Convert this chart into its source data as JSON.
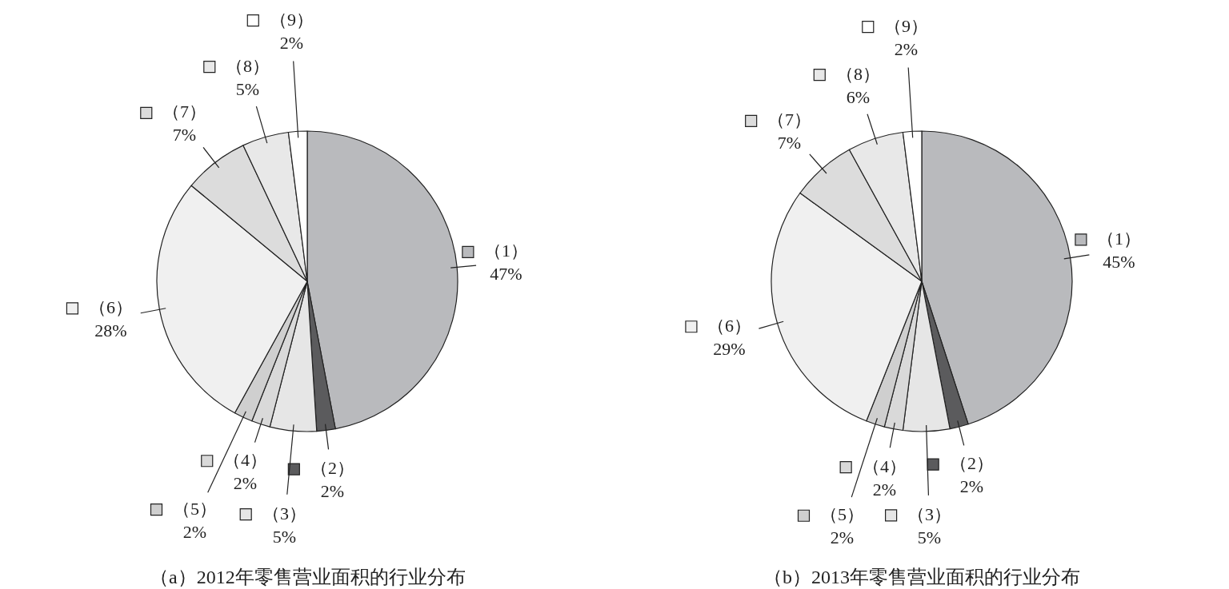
{
  "chart_data": [
    {
      "type": "pie",
      "title": "（a）2012年零售营业面积的行业分布",
      "categories": [
        "（1）",
        "（2）",
        "（3）",
        "（4）",
        "（5）",
        "（6）",
        "（7）",
        "（8）",
        "（9）"
      ],
      "values": [
        47,
        2,
        5,
        2,
        2,
        28,
        7,
        5,
        2
      ],
      "value_labels": [
        "47%",
        "2%",
        "5%",
        "2%",
        "2%",
        "28%",
        "7%",
        "5%",
        "2%"
      ],
      "colors": [
        "#b9babd",
        "#5b5b5d",
        "#e6e6e6",
        "#d9d9d9",
        "#cfcfcf",
        "#f0f0f0",
        "#dcdcdc",
        "#e8e8e8",
        "#ffffff"
      ],
      "legend": "left"
    },
    {
      "type": "pie",
      "title": "（b）2013年零售营业面积的行业分布",
      "categories": [
        "（1）",
        "（2）",
        "（3）",
        "（4）",
        "（5）",
        "（6）",
        "（7）",
        "（8）",
        "（9）"
      ],
      "values": [
        45,
        2,
        5,
        2,
        2,
        29,
        7,
        6,
        2
      ],
      "value_labels": [
        "45%",
        "2%",
        "5%",
        "2%",
        "2%",
        "29%",
        "7%",
        "6%",
        "2%"
      ],
      "colors": [
        "#b9babd",
        "#5b5b5d",
        "#e6e6e6",
        "#d9d9d9",
        "#cfcfcf",
        "#f0f0f0",
        "#dcdcdc",
        "#e8e8e8",
        "#ffffff"
      ],
      "legend": "left"
    }
  ]
}
